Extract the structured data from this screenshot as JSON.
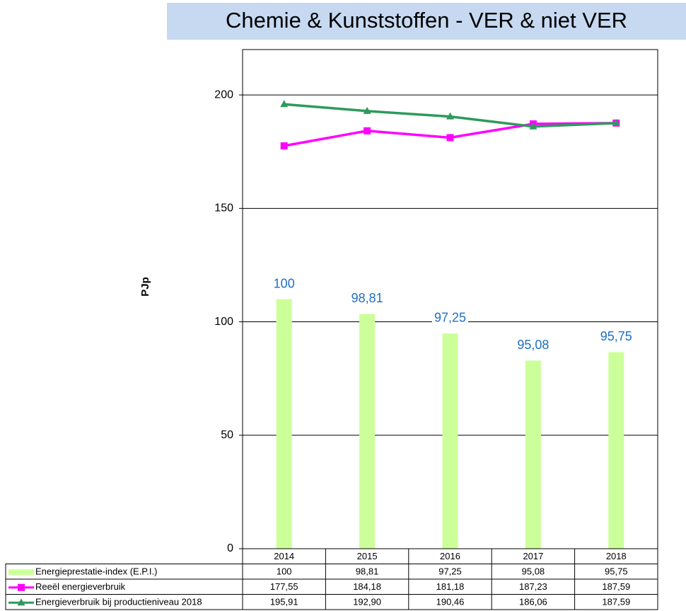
{
  "chart_data": {
    "type": "bar",
    "title": "Chemie & Kunststoffen  -  VER & niet VER",
    "ylabel": "PJp",
    "categories": [
      "2014",
      "2015",
      "2016",
      "2017",
      "2018"
    ],
    "ylim": [
      0,
      220
    ],
    "yticks": [
      0,
      50,
      100,
      150,
      200
    ],
    "grid": true,
    "y2lim": [
      80,
      120
    ],
    "series": [
      {
        "name": "Energieprestatie-index (E.P.I.)",
        "type": "bar",
        "axis": "y2",
        "color": "#ccff99",
        "values": [
          100,
          98.81,
          97.25,
          95.08,
          95.75
        ],
        "value_labels": [
          "100",
          "98,81",
          "97,25",
          "95,08",
          "95,75"
        ]
      },
      {
        "name": "Reeël energieverbruik",
        "type": "line",
        "color": "#ff00ff",
        "marker": "square",
        "values": [
          177.55,
          184.18,
          181.18,
          187.23,
          187.59
        ],
        "value_labels": [
          "177,55",
          "184,18",
          "181,18",
          "187,23",
          "187,59"
        ]
      },
      {
        "name": "Energieverbruik bij productieniveau 2018",
        "type": "line",
        "color": "#2e9a5c",
        "marker": "triangle",
        "values": [
          195.91,
          192.9,
          190.46,
          186.06,
          187.59
        ],
        "value_labels": [
          "195,91",
          "192,90",
          "190,46",
          "186,06",
          "187,59"
        ]
      }
    ]
  }
}
